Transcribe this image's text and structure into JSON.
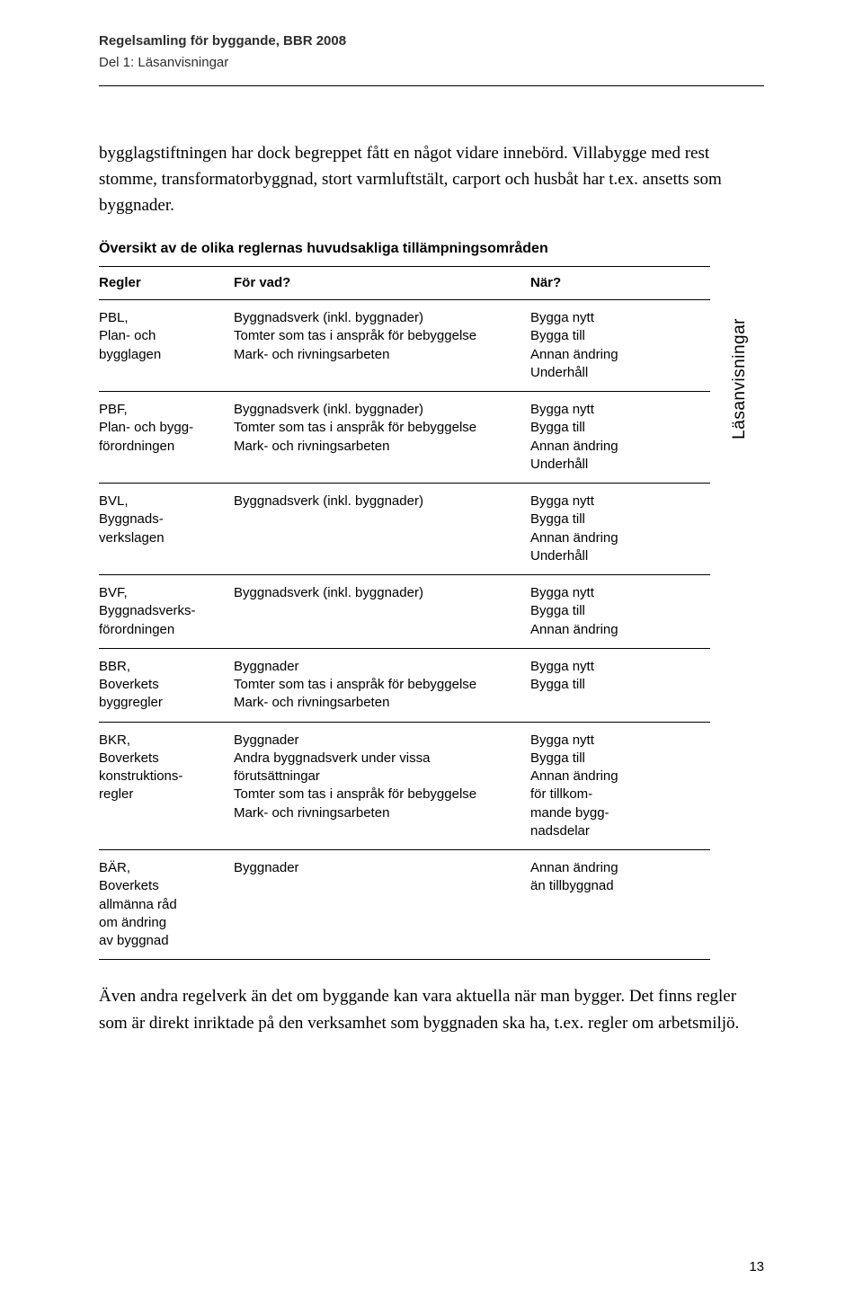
{
  "header": {
    "title": "Regelsamling för byggande, BBR 2008",
    "subtitle": "Del 1: Läsanvisningar"
  },
  "intro_paragraph": "bygglagstiftningen har dock begreppet fått en något vidare innebörd. Villabygge med rest stomme, transformator­byggnad, stort varmluftstält, carport och husbåt har t.ex. ansetts som byggnader.",
  "table_title": "Översikt av de olika reglernas huvudsakliga tillämpningsområden",
  "side_tab": "Läsanvisningar",
  "columns": {
    "c1": "Regler",
    "c2": "För vad?",
    "c3": "När?"
  },
  "rows": [
    {
      "regler": [
        "PBL,",
        "Plan- och",
        "bygglagen"
      ],
      "for_vad": [
        "Byggnadsverk (inkl. byggnader)",
        "Tomter som tas i anspråk för bebyggelse",
        "Mark- och rivningsarbeten"
      ],
      "nar": [
        "Bygga nytt",
        "Bygga till",
        "Annan ändring",
        "Underhåll"
      ]
    },
    {
      "regler": [
        "PBF,",
        "Plan- och bygg-",
        "förordningen"
      ],
      "for_vad": [
        "Byggnadsverk (inkl. byggnader)",
        "Tomter som tas i anspråk för bebyggelse",
        "Mark- och rivningsarbeten"
      ],
      "nar": [
        "Bygga nytt",
        "Bygga till",
        "Annan ändring",
        "Underhåll"
      ]
    },
    {
      "regler": [
        "BVL,",
        "Byggnads-",
        "verkslagen"
      ],
      "for_vad": [
        "Byggnadsverk (inkl. byggnader)"
      ],
      "nar": [
        "Bygga nytt",
        "Bygga till",
        "Annan ändring",
        "Underhåll"
      ]
    },
    {
      "regler": [
        "BVF,",
        "Byggnadsverks-",
        "förordningen"
      ],
      "for_vad": [
        "Byggnadsverk (inkl. byggnader)"
      ],
      "nar": [
        "Bygga nytt",
        "Bygga till",
        "Annan ändring"
      ]
    },
    {
      "regler": [
        "BBR,",
        "Boverkets",
        "byggregler"
      ],
      "for_vad": [
        "Byggnader",
        "Tomter som tas i anspråk för bebyggelse",
        "Mark- och rivningsarbeten"
      ],
      "nar": [
        "Bygga nytt",
        "Bygga till"
      ]
    },
    {
      "regler": [
        "BKR,",
        "Boverkets",
        "konstruktions-",
        "regler"
      ],
      "for_vad": [
        "Byggnader",
        "Andra byggnadsverk under vissa",
        "förutsättningar",
        "Tomter som tas i anspråk för bebyggelse",
        "Mark- och rivningsarbeten"
      ],
      "nar": [
        "Bygga nytt",
        "Bygga till",
        "Annan ändring",
        "för tillkom-",
        "mande bygg-",
        "nadsdelar"
      ]
    },
    {
      "regler": [
        "BÄR,",
        "Boverkets",
        "allmänna råd",
        "om ändring",
        "av byggnad"
      ],
      "for_vad": [
        "Byggnader"
      ],
      "nar": [
        "Annan ändring",
        "än tillbyggnad"
      ]
    }
  ],
  "outro_paragraph": "Även andra regelverk än det om byggande kan vara aktuel­la när man bygger. Det finns regler som är direkt inriktade på den verksamhet som byggnaden ska ha, t.ex. regler om arbetsmiljö.",
  "page_number": "13"
}
